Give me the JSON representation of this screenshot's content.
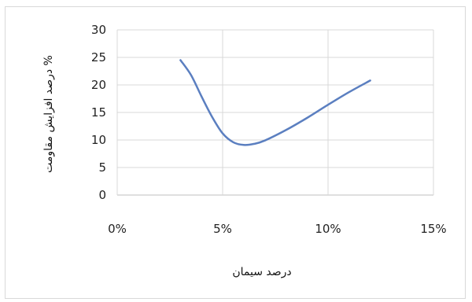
{
  "chart_data": {
    "type": "line",
    "title": "",
    "xlabel": "درصد سیمان",
    "ylabel": "درصد افزایش مقاومت %",
    "xlim": [
      0,
      0.15
    ],
    "ylim": [
      0,
      30
    ],
    "x_ticks": [
      0,
      0.05,
      0.1,
      0.15
    ],
    "x_tick_labels": [
      "0%",
      "5%",
      "10%",
      "15%"
    ],
    "y_ticks": [
      0,
      5,
      10,
      15,
      20,
      25,
      30
    ],
    "y_tick_labels": [
      "0",
      "5",
      "10",
      "15",
      "20",
      "25",
      "30"
    ],
    "grid": true,
    "legend": "none",
    "series": [
      {
        "color": "#5b7fc0",
        "x": [
          0.03,
          0.035,
          0.04,
          0.045,
          0.05,
          0.055,
          0.06,
          0.065,
          0.07,
          0.08,
          0.09,
          0.1,
          0.11,
          0.12
        ],
        "y": [
          24.5,
          21.8,
          17.9,
          14.2,
          11.2,
          9.6,
          9.1,
          9.3,
          9.9,
          11.8,
          14.0,
          16.4,
          18.7,
          20.8
        ]
      }
    ]
  }
}
